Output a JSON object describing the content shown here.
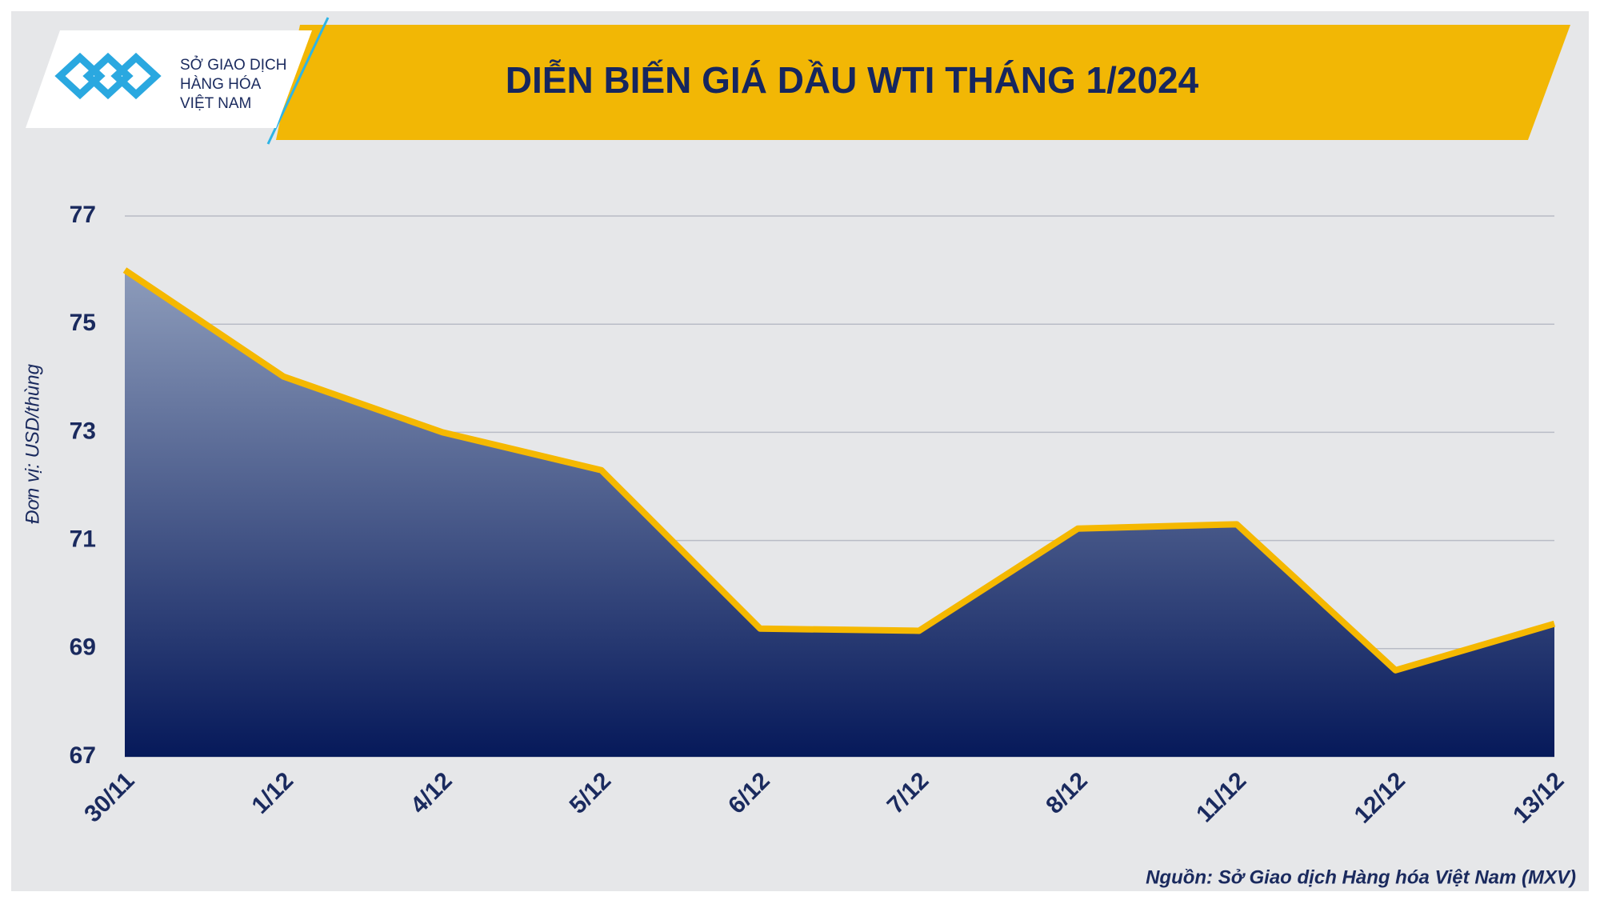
{
  "chart_data": {
    "type": "area",
    "title": "DIỄN BIẾN GIÁ DẦU WTI THÁNG 1/2024",
    "ylabel": "Đơn vị: USD/thùng",
    "source": "Nguồn: Sở Giao dịch Hàng hóa Việt Nam (MXV)",
    "categories": [
      "30/11",
      "1/12",
      "4/12",
      "5/12",
      "6/12",
      "7/12",
      "8/12",
      "11/12",
      "12/12",
      "13/12"
    ],
    "series": [
      {
        "name": "WTI",
        "color": "#f5b800",
        "values": [
          76.0,
          74.03,
          73.0,
          72.3,
          69.37,
          69.33,
          71.22,
          71.3,
          68.6,
          69.46
        ]
      }
    ],
    "area_colors": [
      "#8d9cbb",
      "#06195a"
    ],
    "ylim": [
      67,
      77
    ],
    "yticks": [
      67,
      69,
      71,
      73,
      75,
      77
    ],
    "grid": true
  },
  "logo": [
    "SỞ GIAO DỊCH",
    "HÀNG HÓA",
    "VIỆT NAM"
  ]
}
